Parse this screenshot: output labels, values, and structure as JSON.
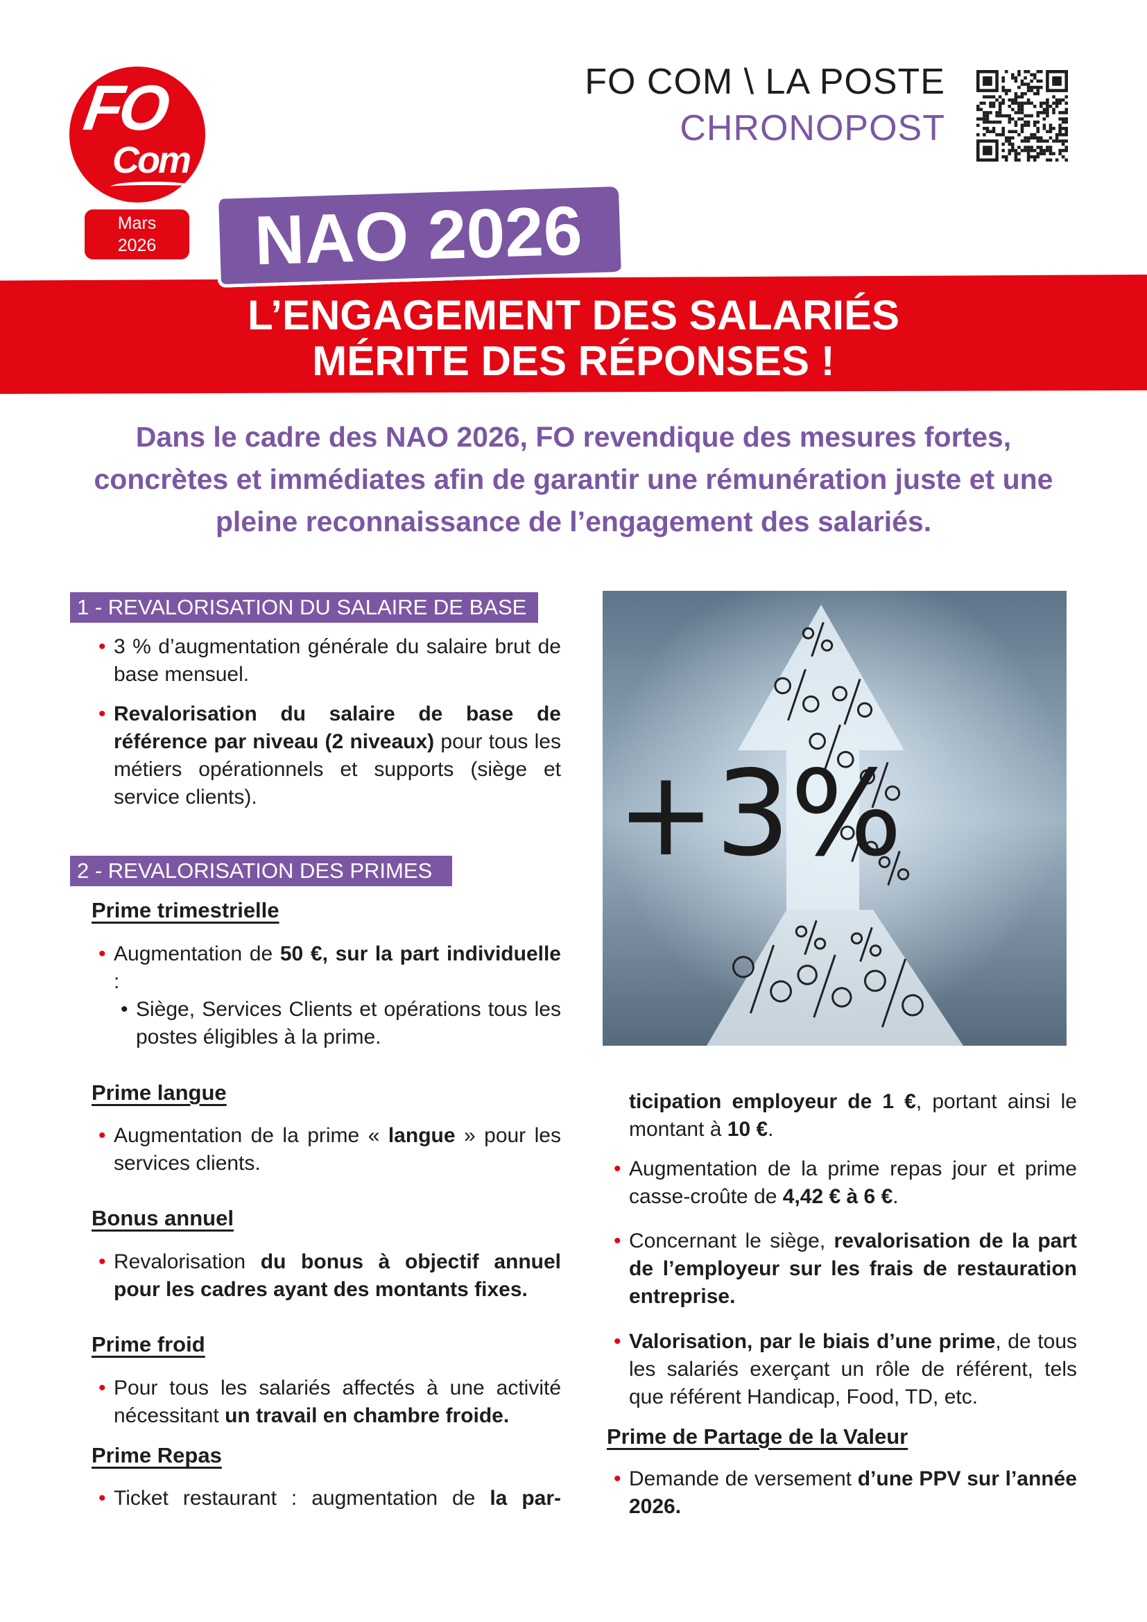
{
  "logo": {
    "text1": "FO",
    "text2": "Com"
  },
  "date": {
    "month": "Mars",
    "year": "2026"
  },
  "header": {
    "org": "FO COM \\ LA POSTE",
    "company": "CHRONOPOST"
  },
  "banner": {
    "tag": "NAO 2026",
    "title_line1": "L’ENGAGEMENT DES SALARIÉS",
    "title_line2": "MÉRITE DES RÉPONSES !"
  },
  "intro": "Dans le cadre des NAO 2026, FO revendique des mesures fortes, concrètes et immédiates afin de garantir une rémunération juste et une pleine reconnaissance de l’engagement des salariés.",
  "image": {
    "label": "+3%"
  },
  "colors": {
    "red": "#e30613",
    "purple": "#7b57a3"
  },
  "section1": {
    "heading": "1 - REVALORISATION DU SALAIRE DE BASE",
    "bullets": [
      [
        {
          "t": "3 % d’augmentation générale du salaire brut de base mensuel."
        }
      ],
      [
        {
          "t": "Revalorisation du salaire de base de référence par niveau (2 niveaux)",
          "b": true
        },
        {
          "t": " pour tous les métiers opérationnels et supports (siège et service clients)."
        }
      ]
    ]
  },
  "section2": {
    "heading": "2 - REVALORISATION DES PRIMES",
    "prime_trimestrielle": {
      "title": "Prime trimestrielle",
      "bullet": [
        {
          "t": "Augmentation de "
        },
        {
          "t": "50 €, sur la part individuelle",
          "b": true
        },
        {
          "t": " :"
        }
      ],
      "sub": [
        {
          "t": "Siège, Services Clients et opérations tous les postes éligibles à la prime."
        }
      ]
    },
    "prime_langue": {
      "title": "Prime langue",
      "bullet": [
        {
          "t": "Augmentation de la prime « "
        },
        {
          "t": "langue",
          "b": true
        },
        {
          "t": " » pour les services clients."
        }
      ]
    },
    "bonus_annuel": {
      "title": "Bonus annuel",
      "bullet": [
        {
          "t": "Revalorisation "
        },
        {
          "t": "du bonus à objectif annuel pour les cadres ayant des montants fixes.",
          "b": true
        }
      ]
    },
    "prime_froid": {
      "title": "Prime froid",
      "bullet": [
        {
          "t": "Pour tous les salariés affectés à une activité nécessitant "
        },
        {
          "t": "un travail en chambre froide.",
          "b": true
        }
      ]
    },
    "prime_repas": {
      "title": "Prime Repas",
      "bullet1_start": [
        {
          "t": "Ticket restaurant : augmentation de "
        },
        {
          "t": "la par-",
          "b": true
        }
      ],
      "bullet1_end": [
        {
          "t": "ticipation employeur de 1 €",
          "b": true
        },
        {
          "t": ", portant ainsi le montant à "
        },
        {
          "t": "10 €",
          "b": true
        },
        {
          "t": "."
        }
      ],
      "bullet2": [
        {
          "t": "Augmentation de la prime repas jour et prime casse-croûte de "
        },
        {
          "t": "4,42 € à 6 €",
          "b": true
        },
        {
          "t": "."
        }
      ],
      "bullet3": [
        {
          "t": "Concernant le siège, "
        },
        {
          "t": "revalorisation de la part de l’employeur sur les frais de restauration entreprise.",
          "b": true
        }
      ],
      "bullet4": [
        {
          "t": "Valorisation, par le biais d’une prime",
          "b": true
        },
        {
          "t": ", de tous les salariés exerçant un rôle de référent, tels que référent Handicap, Food, TD, etc."
        }
      ]
    },
    "ppv": {
      "title": "Prime de Partage de la Valeur",
      "bullet": [
        {
          "t": "Demande de versement "
        },
        {
          "t": "d’une PPV sur l’année 2026.",
          "b": true
        }
      ]
    }
  }
}
